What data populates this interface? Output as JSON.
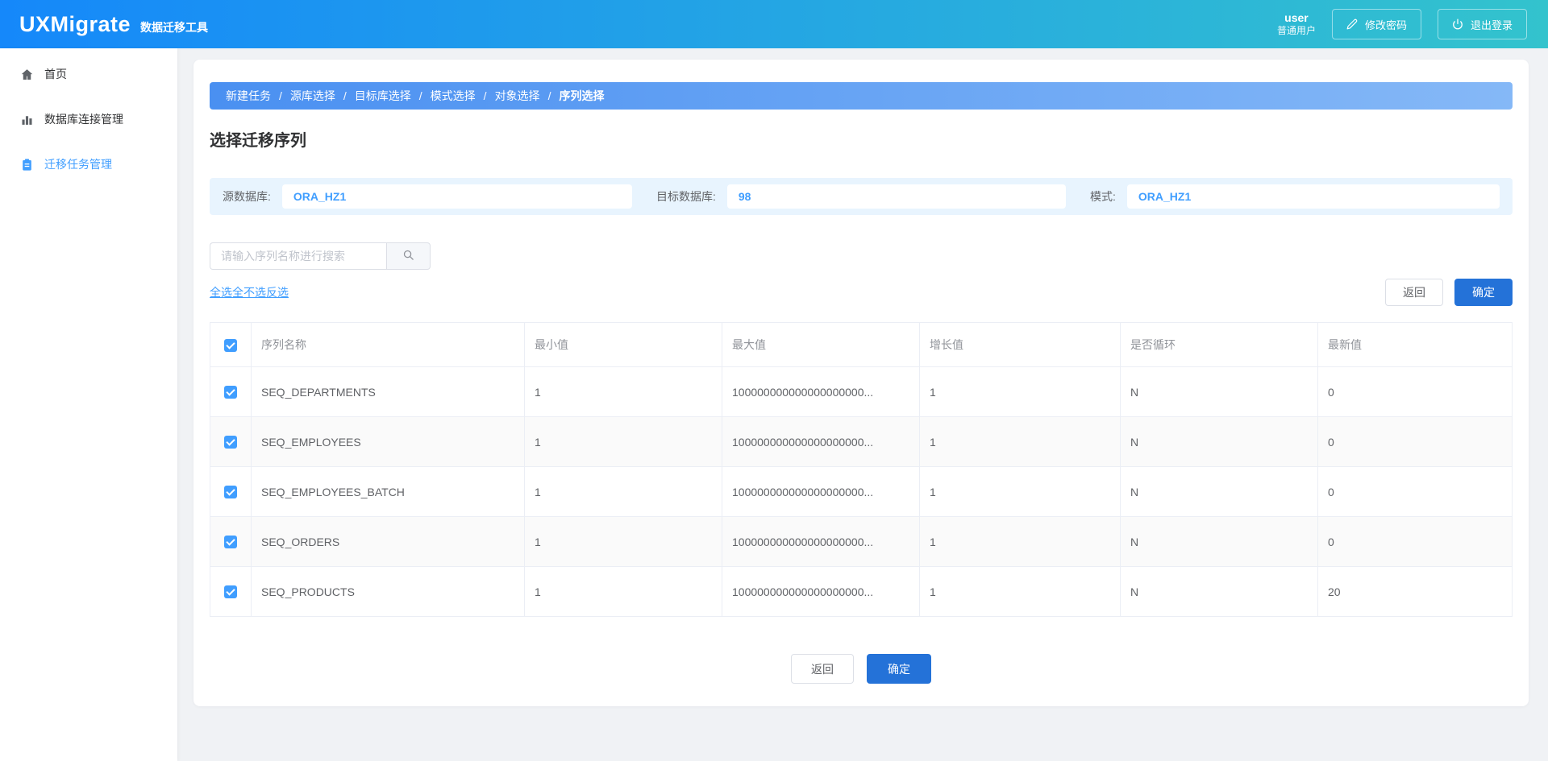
{
  "header": {
    "logo": "UXMigrate",
    "subtitle": "数据迁移工具",
    "username": "user",
    "user_role": "普通用户",
    "change_password_label": "修改密码",
    "logout_label": "退出登录",
    "change_password_icon": "pencil-icon",
    "logout_icon": "power-icon"
  },
  "sidebar": {
    "items": [
      {
        "key": "home",
        "label": "首页",
        "icon": "home-icon",
        "active": false
      },
      {
        "key": "db-connections",
        "label": "数据库连接管理",
        "icon": "bar-chart-icon",
        "active": false
      },
      {
        "key": "migration-tasks",
        "label": "迁移任务管理",
        "icon": "clipboard-icon",
        "active": true
      }
    ]
  },
  "breadcrumb": {
    "steps": [
      "新建任务",
      "源库选择",
      "目标库选择",
      "模式选择",
      "对象选择",
      "序列选择"
    ],
    "separator": "/",
    "active_step": "序列选择"
  },
  "page": {
    "title": "选择迁移序列"
  },
  "info_bar": {
    "fields": [
      {
        "label": "源数据库:",
        "value": "ORA_HZ1"
      },
      {
        "label": "目标数据库:",
        "value": "98"
      },
      {
        "label": "模式:",
        "value": "ORA_HZ1"
      }
    ]
  },
  "search": {
    "placeholder": "请输入序列名称进行搜索",
    "icon": "search-icon"
  },
  "selection_links": [
    {
      "label": "全选"
    },
    {
      "label": "全不选"
    },
    {
      "label": "反选"
    }
  ],
  "actions": {
    "back_label": "返回",
    "confirm_label": "确定"
  },
  "table": {
    "select_all_checked": true,
    "columns": [
      "序列名称",
      "最小值",
      "最大值",
      "增长值",
      "是否循环",
      "最新值"
    ],
    "rows": [
      {
        "checked": true,
        "name": "SEQ_DEPARTMENTS",
        "min": "1",
        "max": "100000000000000000000...",
        "increment": "1",
        "cycle": "N",
        "latest": "0"
      },
      {
        "checked": true,
        "name": "SEQ_EMPLOYEES",
        "min": "1",
        "max": "100000000000000000000...",
        "increment": "1",
        "cycle": "N",
        "latest": "0"
      },
      {
        "checked": true,
        "name": "SEQ_EMPLOYEES_BATCH",
        "min": "1",
        "max": "100000000000000000000...",
        "increment": "1",
        "cycle": "N",
        "latest": "0"
      },
      {
        "checked": true,
        "name": "SEQ_ORDERS",
        "min": "1",
        "max": "100000000000000000000...",
        "increment": "1",
        "cycle": "N",
        "latest": "0"
      },
      {
        "checked": true,
        "name": "SEQ_PRODUCTS",
        "min": "1",
        "max": "100000000000000000000...",
        "increment": "1",
        "cycle": "N",
        "latest": "20"
      }
    ]
  },
  "footer": {
    "back_label": "返回",
    "confirm_label": "确定"
  },
  "colors": {
    "accent": "#409eff",
    "primary_button": "#2472d8",
    "header_gradient_from": "#1588fa",
    "header_gradient_to": "#33c3cd",
    "breadcrumb_gradient_from": "#4a90f1",
    "breadcrumb_gradient_to": "#85b8f7",
    "info_bar_background": "#e8f4fe"
  }
}
